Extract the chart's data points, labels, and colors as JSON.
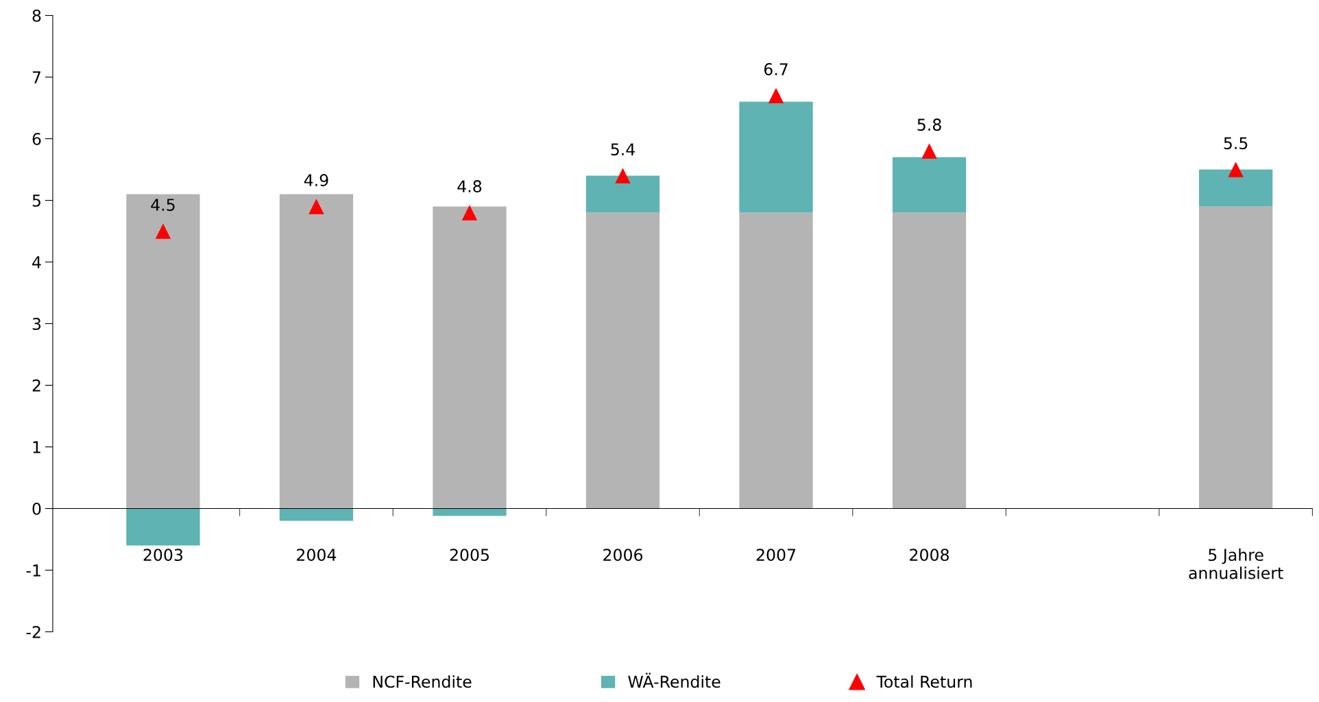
{
  "chart_data": {
    "type": "bar",
    "stacked": true,
    "categories": [
      "2003",
      "2004",
      "2005",
      "2006",
      "2007",
      "2008",
      null,
      "5 Jahre\nannualisiert"
    ],
    "series": [
      {
        "name": "NCF-Rendite",
        "color": "#b4b4b4",
        "values": [
          5.1,
          5.1,
          4.9,
          4.8,
          4.8,
          4.8,
          null,
          4.9
        ]
      },
      {
        "name": "WÄ-Rendite",
        "color": "#5fb3b3",
        "values": [
          -0.6,
          -0.2,
          -0.12,
          0.6,
          1.8,
          0.9,
          null,
          0.6
        ]
      },
      {
        "name": "Total Return",
        "type": "scatter",
        "marker": "triangle",
        "color": "#ff0000",
        "values": [
          4.5,
          4.9,
          4.8,
          5.4,
          6.7,
          5.8,
          null,
          5.5
        ],
        "value_labels": [
          "4.5",
          "4.9",
          "4.8",
          "5.4",
          "6.7",
          "5.8",
          null,
          "5.5"
        ]
      }
    ],
    "ylim": [
      -2,
      8
    ],
    "yticks": [
      -2,
      -1,
      0,
      1,
      2,
      3,
      4,
      5,
      6,
      7,
      8
    ],
    "grid": false,
    "legend": "bottom"
  }
}
